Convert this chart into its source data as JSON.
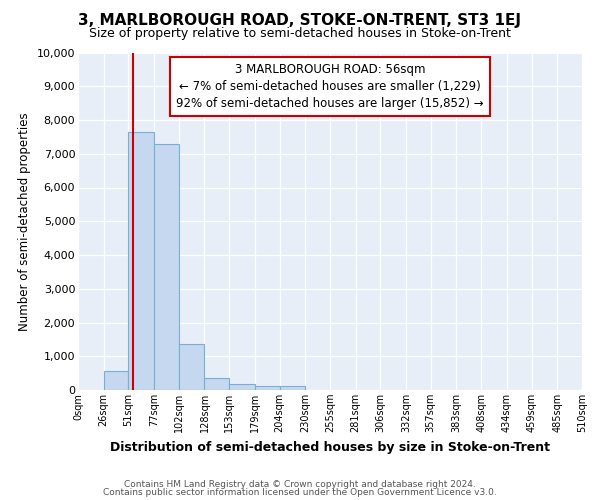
{
  "title": "3, MARLBOROUGH ROAD, STOKE-ON-TRENT, ST3 1EJ",
  "subtitle": "Size of property relative to semi-detached houses in Stoke-on-Trent",
  "xlabel": "Distribution of semi-detached houses by size in Stoke-on-Trent",
  "ylabel": "Number of semi-detached properties",
  "bin_labels": [
    "0sqm",
    "26sqm",
    "51sqm",
    "77sqm",
    "102sqm",
    "128sqm",
    "153sqm",
    "179sqm",
    "204sqm",
    "230sqm",
    "255sqm",
    "281sqm",
    "306sqm",
    "332sqm",
    "357sqm",
    "383sqm",
    "408sqm",
    "434sqm",
    "459sqm",
    "485sqm",
    "510sqm"
  ],
  "bin_values": [
    0,
    550,
    7650,
    7300,
    1350,
    350,
    175,
    125,
    125,
    0,
    0,
    0,
    0,
    0,
    0,
    0,
    0,
    0,
    0,
    0
  ],
  "bar_color": "#c5d8ef",
  "bar_edgecolor": "#7aafd4",
  "vline_x": 56,
  "vline_color": "#cc0000",
  "annotation_title": "3 MARLBOROUGH ROAD: 56sqm",
  "annotation_line1": "← 7% of semi-detached houses are smaller (1,229)",
  "annotation_line2": "92% of semi-detached houses are larger (15,852) →",
  "annotation_box_color": "#ffffff",
  "annotation_box_edgecolor": "#cc0000",
  "ylim": [
    0,
    10000
  ],
  "yticks": [
    0,
    1000,
    2000,
    3000,
    4000,
    5000,
    6000,
    7000,
    8000,
    9000,
    10000
  ],
  "footer1": "Contains HM Land Registry data © Crown copyright and database right 2024.",
  "footer2": "Contains public sector information licensed under the Open Government Licence v3.0.",
  "bin_edges": [
    0,
    26,
    51,
    77,
    102,
    128,
    153,
    179,
    204,
    230,
    255,
    281,
    306,
    332,
    357,
    383,
    408,
    434,
    459,
    485,
    510
  ],
  "bg_color": "#e8eef8",
  "grid_color": "#ffffff",
  "title_fontsize": 11,
  "subtitle_fontsize": 9,
  "footer_fontsize": 6.5
}
